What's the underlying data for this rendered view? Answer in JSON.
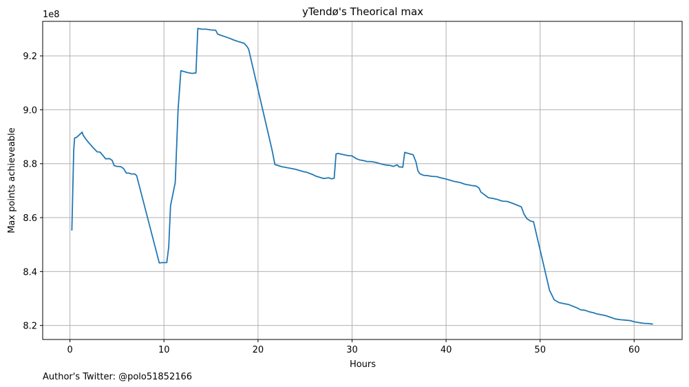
{
  "footer_text": "Author's Twitter: @polo51852166",
  "chart_data": {
    "type": "line",
    "title": "yTendø's Theorical max",
    "xlabel": "Hours",
    "ylabel": "Max points achieveable",
    "offset_label": "1e8",
    "y_scale_factor": 100000000,
    "xlim": [
      -2.9,
      65.1
    ],
    "ylim": [
      8.148,
      9.328
    ],
    "xticks": [
      0,
      10,
      20,
      30,
      40,
      50,
      60
    ],
    "yticks": [
      8.2,
      8.4,
      8.6,
      8.8,
      9.0,
      9.2
    ],
    "ytick_labels": [
      "8.2",
      "8.4",
      "8.6",
      "8.8",
      "9.0",
      "9.2"
    ],
    "grid": true,
    "line_color": "#1f77b4",
    "grid_color": "#b0b0b0",
    "series": [
      {
        "x": [
          0.2,
          0.4,
          0.5,
          0.7,
          1.0,
          1.3,
          1.4,
          1.7,
          2.0,
          2.5,
          2.9,
          3.2,
          3.5,
          3.8,
          4.2,
          4.5,
          4.7,
          5.0,
          5.4,
          5.7,
          6.0,
          6.3,
          6.5,
          6.9,
          7.1,
          9.5,
          9.8,
          10.3,
          10.5,
          10.7,
          11.2,
          11.5,
          11.8,
          12.5,
          13.0,
          13.4,
          13.6,
          14.0,
          14.5,
          15.0,
          15.5,
          15.7,
          16.0,
          16.5,
          17.0,
          17.4,
          18.0,
          18.5,
          18.8,
          19.0,
          21.5,
          21.8,
          22.5,
          23.0,
          24.0,
          24.8,
          25.2,
          25.8,
          26.2,
          26.5,
          27.0,
          27.5,
          27.8,
          28.1,
          28.3,
          28.5,
          29.0,
          29.6,
          30.0,
          30.3,
          30.5,
          30.8,
          31.3,
          31.6,
          32.0,
          32.5,
          33.0,
          33.6,
          34.0,
          34.4,
          34.8,
          35.0,
          35.4,
          35.6,
          35.8,
          36.5,
          36.8,
          37.0,
          37.2,
          37.6,
          38.0,
          38.5,
          39.0,
          39.5,
          40.0,
          40.5,
          40.8,
          41.5,
          42.0,
          42.5,
          42.7,
          43.2,
          43.5,
          43.7,
          44.5,
          44.8,
          45.0,
          45.5,
          45.8,
          46.0,
          46.5,
          47.0,
          47.5,
          48.0,
          48.3,
          48.6,
          49.0,
          49.3,
          51.0,
          51.5,
          52.0,
          52.5,
          53.0,
          53.5,
          54.0,
          54.3,
          54.8,
          55.2,
          55.7,
          56.0,
          56.5,
          57.0,
          57.5,
          58.0,
          58.6,
          59.0,
          59.6,
          60.0,
          60.6,
          61.0,
          61.5,
          62.0
        ],
        "y": [
          8.552,
          8.85,
          8.895,
          8.898,
          8.907,
          8.917,
          8.906,
          8.891,
          8.878,
          8.858,
          8.844,
          8.843,
          8.831,
          8.818,
          8.819,
          8.812,
          8.793,
          8.79,
          8.789,
          8.782,
          8.765,
          8.765,
          8.762,
          8.762,
          8.755,
          8.432,
          8.433,
          8.433,
          8.49,
          8.645,
          8.73,
          9.0,
          9.145,
          9.138,
          9.135,
          9.137,
          9.302,
          9.299,
          9.299,
          9.296,
          9.295,
          9.281,
          9.277,
          9.271,
          9.265,
          9.259,
          9.252,
          9.247,
          9.236,
          9.225,
          8.85,
          8.797,
          8.789,
          8.786,
          8.779,
          8.771,
          8.768,
          8.76,
          8.753,
          8.75,
          8.745,
          8.748,
          8.744,
          8.746,
          8.836,
          8.838,
          8.834,
          8.83,
          8.829,
          8.822,
          8.818,
          8.814,
          8.811,
          8.808,
          8.808,
          8.805,
          8.8,
          8.795,
          8.794,
          8.79,
          8.796,
          8.788,
          8.787,
          8.842,
          8.84,
          8.833,
          8.806,
          8.774,
          8.763,
          8.757,
          8.756,
          8.753,
          8.752,
          8.747,
          8.743,
          8.738,
          8.735,
          8.73,
          8.724,
          8.721,
          8.719,
          8.717,
          8.71,
          8.695,
          8.674,
          8.672,
          8.671,
          8.667,
          8.663,
          8.661,
          8.66,
          8.654,
          8.647,
          8.64,
          8.612,
          8.596,
          8.587,
          8.585,
          8.33,
          8.295,
          8.285,
          8.281,
          8.278,
          8.271,
          8.264,
          8.258,
          8.256,
          8.251,
          8.247,
          8.243,
          8.24,
          8.236,
          8.23,
          8.224,
          8.221,
          8.22,
          8.218,
          8.214,
          8.21,
          8.208,
          8.207,
          8.205
        ]
      }
    ]
  }
}
